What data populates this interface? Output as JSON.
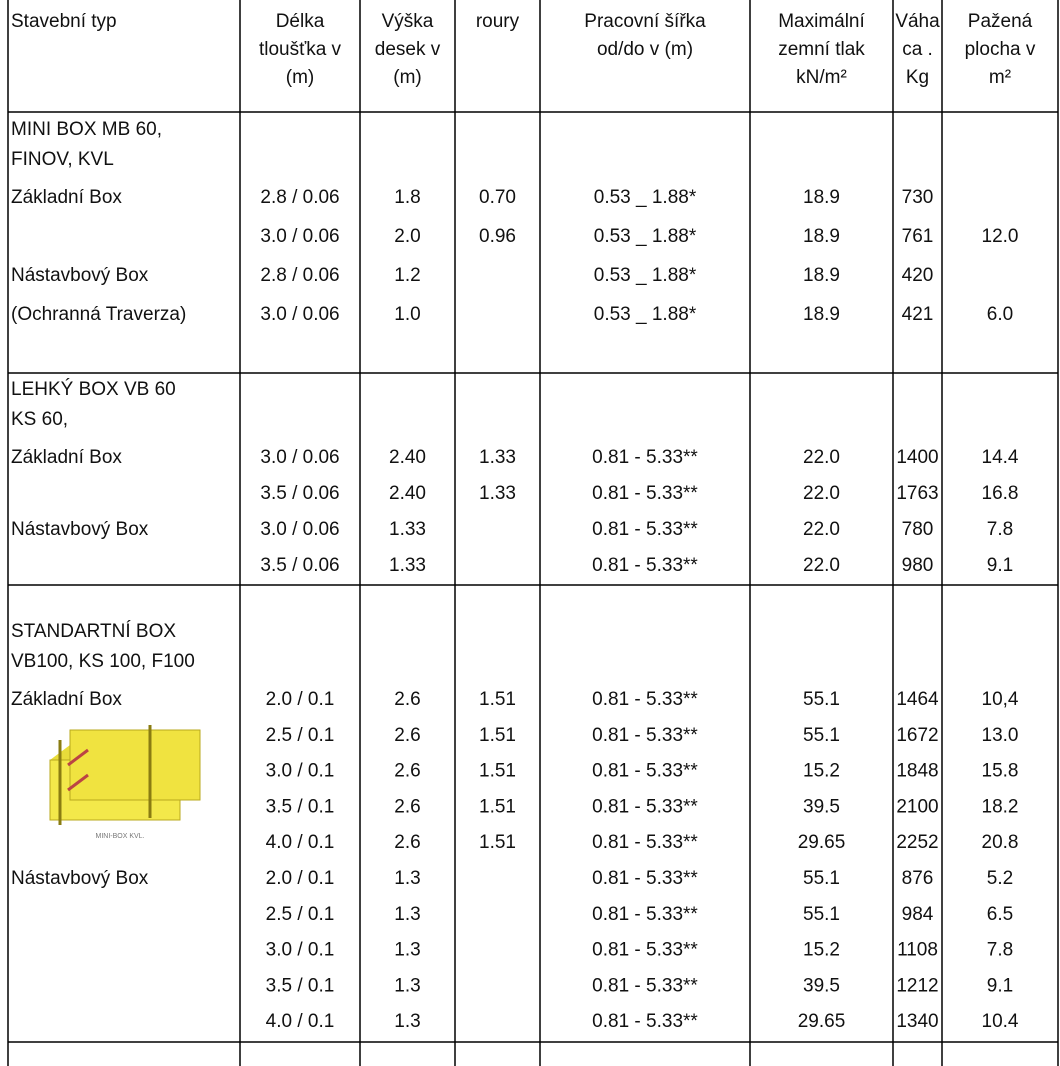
{
  "header": {
    "cells": [
      [
        "Stavební typ"
      ],
      [
        "Délka",
        "tloušťka v",
        "(m)"
      ],
      [
        "Výška",
        "desek v",
        "(m)"
      ],
      [
        "roury"
      ],
      [
        "Pracovní šířka",
        "od/do v (m)"
      ],
      [
        "Maximální",
        "zemní tlak",
        "kN/m²"
      ],
      [
        "Váha",
        "ca .",
        "Kg"
      ],
      [
        "Pažená",
        "plocha v",
        "m²"
      ]
    ]
  },
  "sections": [
    {
      "title": [
        "MINI BOX MB 60,",
        "FINOV, KVL"
      ],
      "rows": [
        [
          "Základní Box",
          "2.8 / 0.06",
          "1.8",
          "0.70",
          "0.53 _ 1.88*",
          "18.9",
          "730",
          null
        ],
        [
          null,
          "3.0 / 0.06",
          "2.0",
          "0.96",
          "0.53 _ 1.88*",
          "18.9",
          "761",
          "12.0"
        ],
        [
          "Nástavbový Box",
          "2.8 / 0.06",
          "1.2",
          null,
          "0.53 _ 1.88*",
          "18.9",
          "420",
          null
        ],
        [
          "(Ochranná Traverza)",
          "3.0 / 0.06",
          "1.0",
          null,
          "0.53 _ 1.88*",
          "18.9",
          "421",
          "6.0"
        ]
      ]
    },
    {
      "title": [
        "LEHKÝ BOX VB 60",
        " KS 60,"
      ],
      "rows": [
        [
          "Základní Box",
          "3.0 / 0.06",
          "2.40",
          "1.33",
          "0.81 - 5.33**",
          "22.0",
          "1400",
          "14.4"
        ],
        [
          null,
          "3.5 / 0.06",
          "2.40",
          "1.33",
          "0.81 - 5.33**",
          "22.0",
          "1763",
          "16.8"
        ],
        [
          "Nástavbový Box",
          "3.0 / 0.06",
          "1.33",
          null,
          "0.81 - 5.33**",
          "22.0",
          "780",
          "7.8"
        ],
        [
          null,
          "3.5 / 0.06",
          "1.33",
          null,
          "0.81 - 5.33**",
          "22.0",
          "980",
          "9.1"
        ]
      ]
    },
    {
      "title": [
        "STANDARTNÍ BOX",
        "VB100, KS 100, F100"
      ],
      "image_caption": "MINI-BOX KVL.",
      "rows": [
        [
          "Základní Box",
          "2.0 / 0.1",
          "2.6",
          "1.51",
          "0.81 - 5.33**",
          "55.1",
          "1464",
          "10,4"
        ],
        [
          null,
          "2.5 / 0.1",
          "2.6",
          "1.51",
          "0.81 - 5.33**",
          "55.1",
          "1672",
          "13.0"
        ],
        [
          null,
          "3.0 / 0.1",
          "2.6",
          "1.51",
          "0.81 - 5.33**",
          "15.2",
          "1848",
          "15.8"
        ],
        [
          null,
          "3.5 / 0.1",
          "2.6",
          "1.51",
          "0.81 - 5.33**",
          "39.5",
          "2100",
          "18.2"
        ],
        [
          null,
          "4.0 / 0.1",
          "2.6",
          "1.51",
          "0.81 - 5.33**",
          "29.65",
          "2252",
          "20.8"
        ],
        [
          "Nástavbový Box",
          "2.0 / 0.1",
          "1.3",
          null,
          "0.81 - 5.33**",
          "55.1",
          "876",
          "5.2"
        ],
        [
          null,
          "2.5 / 0.1",
          "1.3",
          null,
          "0.81 - 5.33**",
          "55.1",
          "984",
          "6.5"
        ],
        [
          null,
          "3.0 / 0.1",
          "1.3",
          null,
          "0.81 - 5.33**",
          "15.2",
          "1108",
          "7.8"
        ],
        [
          null,
          "3.5 / 0.1",
          "1.3",
          null,
          "0.81 - 5.33**",
          "39.5",
          "1212",
          "9.1"
        ],
        [
          null,
          "4.0 / 0.1",
          "1.3",
          null,
          "0.81 - 5.33**",
          "29.65",
          "1340",
          "10.4"
        ]
      ]
    }
  ]
}
